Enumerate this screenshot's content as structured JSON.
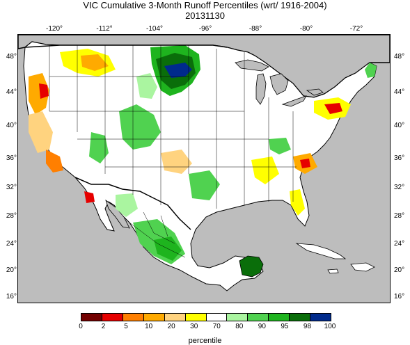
{
  "title": "VIC Cumulative 3-Month Runoff Percentiles (wrt/ 1916-2004)",
  "date": "20131130",
  "lon_labels": [
    "-120°",
    "-112°",
    "-104°",
    "-96°",
    "-88°",
    "-80°",
    "-72°"
  ],
  "lat_labels": [
    "48°",
    "44°",
    "40°",
    "36°",
    "32°",
    "28°",
    "24°",
    "20°",
    "16°"
  ],
  "legend": {
    "breaks": [
      "0",
      "2",
      "5",
      "10",
      "20",
      "30",
      "70",
      "80",
      "90",
      "95",
      "98",
      "100"
    ],
    "colors": [
      "#730000",
      "#e60000",
      "#ff7f00",
      "#ffaa00",
      "#ffd37f",
      "#ffff00",
      "#ffffff",
      "#aaf5a0",
      "#50d250",
      "#1eb41e",
      "#0a6e0a",
      "#002a8c"
    ],
    "unit_label": "percentile"
  },
  "colors": {
    "land": "#ffffff",
    "ocean": "#bdbdbd",
    "border": "#000000"
  }
}
